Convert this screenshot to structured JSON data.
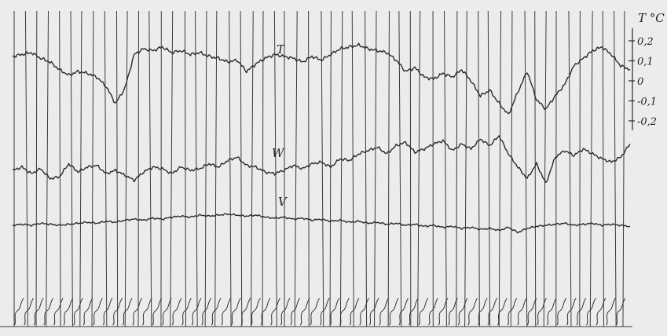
{
  "chart_data": {
    "type": "line",
    "title": "",
    "xlabel": "",
    "ylabel": "T °C",
    "y_axis_side": "right",
    "yticks": [
      "0,2",
      "0,1",
      "0",
      "-0,1",
      "-0,2"
    ],
    "ytick_values": [
      0.2,
      0.1,
      0,
      -0.1,
      -0.2
    ],
    "ylim": [
      -0.25,
      0.25
    ],
    "grid": "vertical time marks",
    "series": [
      {
        "name": "T",
        "values": [
          0.13,
          0.14,
          0.15,
          0.12,
          0.1,
          0.06,
          0.03,
          0.05,
          0.04,
          0.02,
          -0.03,
          -0.12,
          -0.04,
          0.14,
          0.17,
          0.16,
          0.18,
          0.15,
          0.16,
          0.14,
          0.15,
          0.13,
          0.12,
          0.1,
          0.11,
          0.05,
          0.09,
          0.12,
          0.14,
          0.13,
          0.12,
          0.1,
          0.13,
          0.11,
          0.14,
          0.17,
          0.18,
          0.19,
          0.17,
          0.16,
          0.15,
          0.11,
          0.05,
          0.07,
          0.02,
          0.01,
          0.04,
          0.02,
          0.06,
          0.0,
          -0.08,
          -0.05,
          -0.12,
          -0.18,
          -0.06,
          0.05,
          -0.1,
          -0.15,
          -0.08,
          -0.02,
          0.08,
          0.12,
          0.16,
          0.18,
          0.14,
          0.08,
          0.06
        ]
      },
      {
        "name": "W",
        "values": [
          0.1,
          0.12,
          0.08,
          0.11,
          0.05,
          0.06,
          0.14,
          0.09,
          0.12,
          0.13,
          0.08,
          0.1,
          0.07,
          0.04,
          0.09,
          0.12,
          0.11,
          0.08,
          0.12,
          0.1,
          0.11,
          0.14,
          0.12,
          0.16,
          0.18,
          0.13,
          0.12,
          0.09,
          0.08,
          0.1,
          0.13,
          0.11,
          0.14,
          0.15,
          0.12,
          0.17,
          0.16,
          0.2,
          0.22,
          0.24,
          0.2,
          0.25,
          0.27,
          0.21,
          0.23,
          0.26,
          0.28,
          0.22,
          0.26,
          0.23,
          0.29,
          0.25,
          0.31,
          0.2,
          0.12,
          0.05,
          0.14,
          0.02,
          0.18,
          0.22,
          0.19,
          0.23,
          0.2,
          0.17,
          0.15,
          0.18,
          0.26
        ]
      },
      {
        "name": "V",
        "values": [
          0.1,
          0.11,
          0.1,
          0.12,
          0.11,
          0.1,
          0.11,
          0.12,
          0.13,
          0.12,
          0.14,
          0.13,
          0.15,
          0.16,
          0.15,
          0.17,
          0.16,
          0.18,
          0.19,
          0.18,
          0.2,
          0.19,
          0.2,
          0.21,
          0.2,
          0.19,
          0.2,
          0.18,
          0.17,
          0.18,
          0.16,
          0.17,
          0.15,
          0.16,
          0.14,
          0.15,
          0.13,
          0.14,
          0.12,
          0.13,
          0.11,
          0.12,
          0.1,
          0.11,
          0.09,
          0.1,
          0.08,
          0.09,
          0.07,
          0.08,
          0.06,
          0.07,
          0.05,
          0.08,
          0.03,
          0.07,
          0.09,
          0.1,
          0.11,
          0.12,
          0.1,
          0.11,
          0.12,
          0.1,
          0.11,
          0.1,
          0.09
        ]
      }
    ],
    "time_marks": 55
  }
}
